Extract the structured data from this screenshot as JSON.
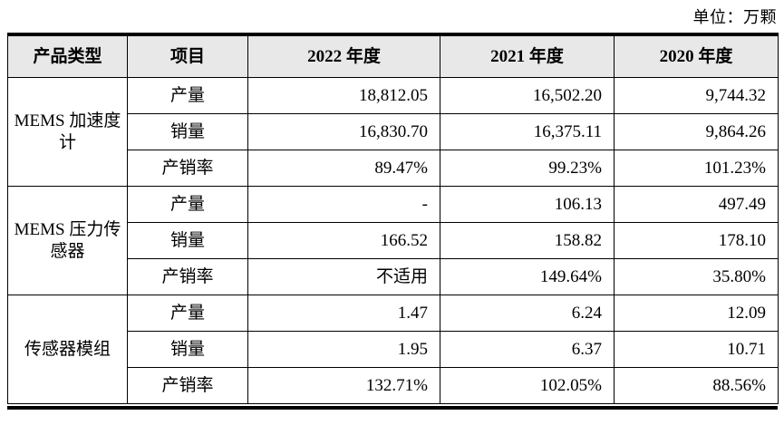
{
  "meta": {
    "unit_label": "单位：万颗"
  },
  "table": {
    "headers": [
      "产品类型",
      "项目",
      "2022 年度",
      "2021 年度",
      "2020 年度"
    ],
    "groups": [
      {
        "product": "MEMS 加速度计",
        "rows": [
          {
            "item": "产量",
            "values": [
              "18,812.05",
              "16,502.20",
              "9,744.32"
            ]
          },
          {
            "item": "销量",
            "values": [
              "16,830.70",
              "16,375.11",
              "9,864.26"
            ]
          },
          {
            "item": "产销率",
            "values": [
              "89.47%",
              "99.23%",
              "101.23%"
            ]
          }
        ]
      },
      {
        "product": "MEMS 压力传感器",
        "rows": [
          {
            "item": "产量",
            "values": [
              "-",
              "106.13",
              "497.49"
            ]
          },
          {
            "item": "销量",
            "values": [
              "166.52",
              "158.82",
              "178.10"
            ]
          },
          {
            "item": "产销率",
            "values": [
              "不适用",
              "149.64%",
              "35.80%"
            ]
          }
        ]
      },
      {
        "product": "传感器模组",
        "rows": [
          {
            "item": "产量",
            "values": [
              "1.47",
              "6.24",
              "12.09"
            ]
          },
          {
            "item": "销量",
            "values": [
              "1.95",
              "6.37",
              "10.71"
            ]
          },
          {
            "item": "产销率",
            "values": [
              "132.71%",
              "102.05%",
              "88.56%"
            ]
          }
        ]
      }
    ]
  }
}
